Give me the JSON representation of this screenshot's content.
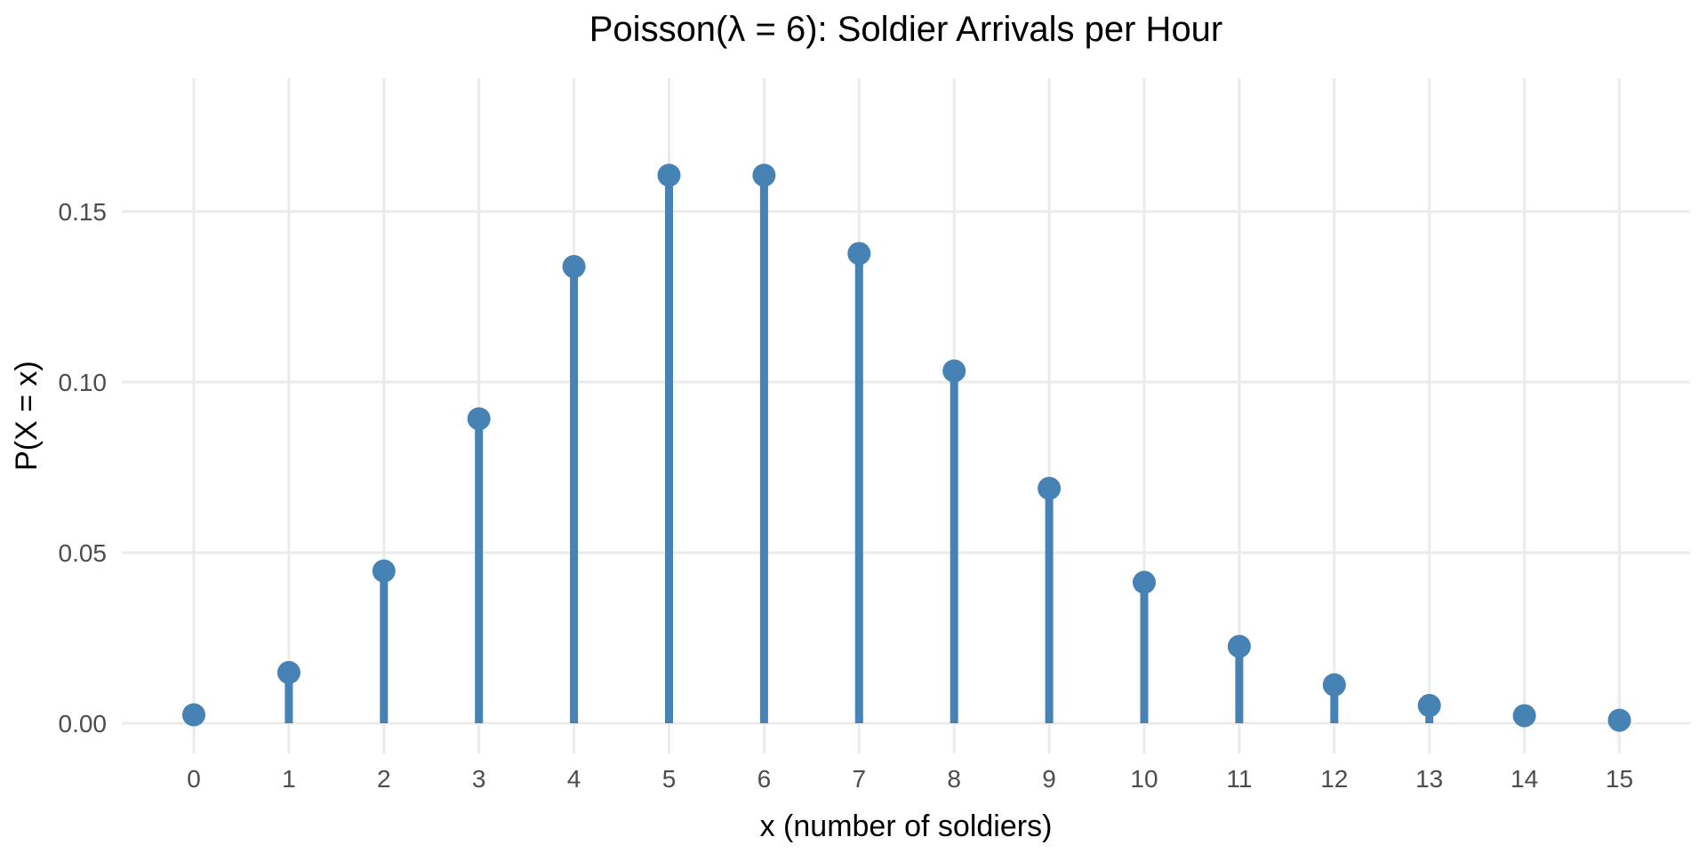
{
  "chart_data": {
    "type": "scatter",
    "variant": "lollipop-stem-pmf",
    "title": "Poisson(λ = 6): Soldier Arrivals per Hour",
    "xlabel": "x (number of soldiers)",
    "ylabel": "P(X = x)",
    "x": [
      0,
      1,
      2,
      3,
      4,
      5,
      6,
      7,
      8,
      9,
      10,
      11,
      12,
      13,
      14,
      15
    ],
    "y": [
      0.002479,
      0.014873,
      0.044618,
      0.089235,
      0.133853,
      0.160623,
      0.160623,
      0.137677,
      0.103258,
      0.068838,
      0.041303,
      0.022529,
      0.011264,
      0.005199,
      0.002228,
      0.000891
    ],
    "x_tick_labels": [
      "0",
      "1",
      "2",
      "3",
      "4",
      "5",
      "6",
      "7",
      "8",
      "9",
      "10",
      "11",
      "12",
      "13",
      "14",
      "15"
    ],
    "y_tick_values": [
      0,
      0.05,
      0.1,
      0.15
    ],
    "y_tick_labels": [
      "0.00",
      "0.05",
      "0.10",
      "0.15"
    ],
    "xlim": [
      -0.75,
      15.75
    ],
    "ylim": [
      -0.009,
      0.189
    ],
    "grid": "major-both",
    "legend": "none",
    "colors": {
      "point": "#4682B4",
      "stem": "#4682B4",
      "grid": "#EBEBEB",
      "tick_label": "#4D4D4D",
      "axis_title": "#000000",
      "title": "#000000",
      "background": "#FFFFFF"
    }
  }
}
